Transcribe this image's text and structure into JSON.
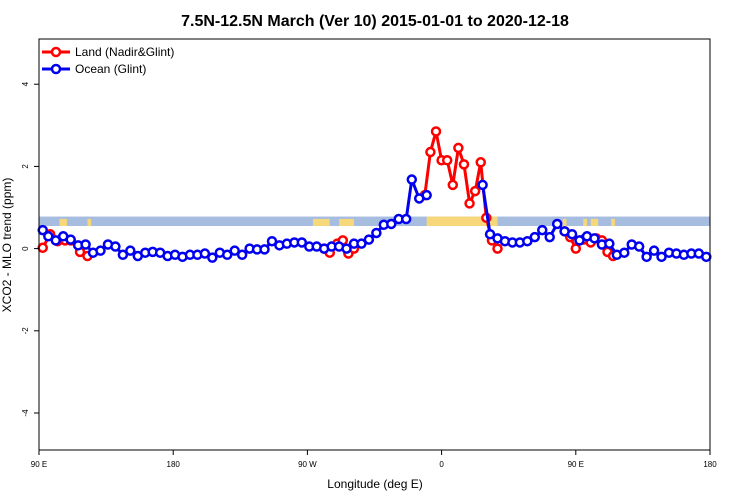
{
  "chart_data": {
    "type": "line",
    "title": "7.5N-12.5N March (Ver 10)   2015-01-01 to 2020-12-18",
    "xlabel": "Longitude (deg E)",
    "ylabel": "XCO2 - MLO trend (ppm)",
    "xlim": [
      90,
      450
    ],
    "ylim": [
      -4.9,
      5.1
    ],
    "xticks": [
      {
        "value": 90,
        "label": "90 E"
      },
      {
        "value": 162,
        "label": "180"
      },
      {
        "value": 234,
        "label": "90 W"
      },
      {
        "value": 306,
        "label": "0"
      },
      {
        "value": 378,
        "label": "90 E"
      },
      {
        "value": 450,
        "label": "180"
      }
    ],
    "yticks": [
      {
        "value": -4,
        "label": "-4"
      },
      {
        "value": -2,
        "label": "-2"
      },
      {
        "value": 0,
        "label": "0"
      },
      {
        "value": 2,
        "label": "2"
      },
      {
        "value": 4,
        "label": "4"
      }
    ],
    "legend_position": "top-left",
    "land_band": {
      "y_range": [
        0.55,
        0.78
      ],
      "ocean_color": "#a7bde0",
      "land_color": "#f6d77a",
      "land_segments": [
        [
          101,
          105,
          "partial"
        ],
        [
          116,
          118,
          "partial"
        ],
        [
          237,
          246,
          "partial"
        ],
        [
          251,
          259,
          "partial"
        ],
        [
          298,
          336,
          "full"
        ],
        [
          371,
          373,
          "partial"
        ],
        [
          382,
          384,
          "partial"
        ],
        [
          386,
          390,
          "partial"
        ],
        [
          397,
          399,
          "partial"
        ]
      ]
    },
    "series": [
      {
        "name": "Land (Nadir&Glint)",
        "color": "#ff0000",
        "segments": [
          [
            [
              92,
              0.02
            ],
            [
              96,
              0.35
            ],
            [
              100,
              0.18
            ],
            [
              104,
              0.2
            ],
            [
              107,
              0.2
            ],
            [
              112,
              -0.08
            ],
            [
              116,
              -0.18
            ]
          ],
          [
            [
              243,
              0.0
            ],
            [
              246,
              -0.1
            ],
            [
              250,
              0.12
            ],
            [
              253,
              0.2
            ],
            [
              256,
              -0.12
            ],
            [
              259,
              0.0
            ]
          ],
          [
            [
              297,
              1.3
            ],
            [
              300,
              2.35
            ],
            [
              303,
              2.85
            ],
            [
              306,
              2.15
            ],
            [
              309,
              2.15
            ],
            [
              312,
              1.55
            ],
            [
              315,
              2.45
            ],
            [
              318,
              2.05
            ],
            [
              321,
              1.1
            ],
            [
              324,
              1.4
            ],
            [
              327,
              2.1
            ],
            [
              330,
              0.75
            ],
            [
              333,
              0.2
            ],
            [
              336,
              0.0
            ]
          ],
          [
            [
              372,
              0.42
            ],
            [
              375,
              0.28
            ],
            [
              378,
              0.0
            ],
            [
              382,
              0.22
            ],
            [
              386,
              0.15
            ],
            [
              389,
              0.25
            ],
            [
              392,
              0.2
            ],
            [
              395,
              -0.08
            ],
            [
              398,
              -0.18
            ]
          ]
        ]
      },
      {
        "name": "Ocean (Glint)",
        "color": "#0000ee",
        "segments": [
          [
            [
              92,
              0.45
            ],
            [
              95,
              0.3
            ],
            [
              99,
              0.2
            ],
            [
              103,
              0.3
            ],
            [
              107,
              0.22
            ],
            [
              111,
              0.08
            ],
            [
              115,
              0.1
            ],
            [
              119,
              -0.1
            ],
            [
              123,
              -0.05
            ],
            [
              127,
              0.1
            ],
            [
              131,
              0.05
            ],
            [
              135,
              -0.15
            ],
            [
              139,
              -0.05
            ],
            [
              143,
              -0.18
            ],
            [
              147,
              -0.1
            ],
            [
              151,
              -0.08
            ],
            [
              155,
              -0.1
            ],
            [
              159,
              -0.18
            ],
            [
              163,
              -0.15
            ],
            [
              167,
              -0.2
            ],
            [
              171,
              -0.15
            ],
            [
              175,
              -0.15
            ],
            [
              179,
              -0.12
            ],
            [
              183,
              -0.22
            ],
            [
              187,
              -0.1
            ],
            [
              191,
              -0.15
            ],
            [
              195,
              -0.05
            ],
            [
              199,
              -0.15
            ],
            [
              203,
              0.0
            ],
            [
              207,
              -0.02
            ],
            [
              211,
              -0.02
            ],
            [
              215,
              0.18
            ],
            [
              219,
              0.08
            ],
            [
              223,
              0.12
            ],
            [
              227,
              0.15
            ],
            [
              231,
              0.15
            ],
            [
              235,
              0.05
            ],
            [
              239,
              0.05
            ],
            [
              243,
              0.0
            ],
            [
              247,
              0.05
            ],
            [
              251,
              0.05
            ],
            [
              255,
              0.0
            ],
            [
              259,
              0.12
            ],
            [
              263,
              0.12
            ],
            [
              267,
              0.22
            ],
            [
              271,
              0.38
            ],
            [
              275,
              0.58
            ],
            [
              279,
              0.6
            ],
            [
              283,
              0.72
            ],
            [
              287,
              0.72
            ],
            [
              290,
              1.68
            ],
            [
              294,
              1.22
            ],
            [
              298,
              1.3
            ]
          ],
          [
            [
              328,
              1.55
            ],
            [
              332,
              0.35
            ],
            [
              336,
              0.25
            ],
            [
              340,
              0.18
            ],
            [
              344,
              0.15
            ],
            [
              348,
              0.15
            ],
            [
              352,
              0.18
            ],
            [
              356,
              0.28
            ],
            [
              360,
              0.45
            ],
            [
              364,
              0.28
            ],
            [
              368,
              0.6
            ],
            [
              372,
              0.42
            ],
            [
              376,
              0.35
            ],
            [
              380,
              0.2
            ],
            [
              384,
              0.3
            ],
            [
              388,
              0.25
            ],
            [
              392,
              0.1
            ],
            [
              396,
              0.12
            ],
            [
              400,
              -0.15
            ],
            [
              404,
              -0.1
            ],
            [
              408,
              0.1
            ],
            [
              412,
              0.05
            ],
            [
              416,
              -0.2
            ],
            [
              420,
              -0.05
            ],
            [
              424,
              -0.2
            ],
            [
              428,
              -0.1
            ],
            [
              432,
              -0.12
            ],
            [
              436,
              -0.15
            ],
            [
              440,
              -0.12
            ],
            [
              444,
              -0.12
            ],
            [
              448,
              -0.2
            ]
          ]
        ]
      }
    ]
  }
}
